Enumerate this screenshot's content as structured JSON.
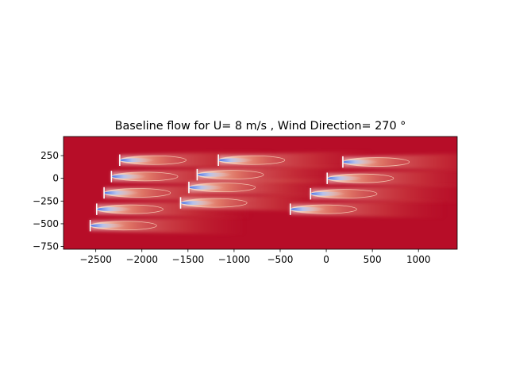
{
  "chart_data": {
    "type": "heatmap",
    "title": "Baseline flow for U= 8 m/s  ,  Wind Direction= 270  °",
    "xlabel": "",
    "ylabel": "",
    "xlim": [
      -2850,
      1420
    ],
    "ylim": [
      -780,
      460
    ],
    "x_ticks": [
      -2500,
      -2000,
      -1500,
      -1000,
      -500,
      0,
      500,
      1000
    ],
    "y_ticks": [
      -750,
      -500,
      -250,
      0,
      250
    ],
    "x_tick_labels": [
      "−2500",
      "−2000",
      "−1500",
      "−1000",
      "−500",
      "0",
      "500",
      "1000"
    ],
    "y_tick_labels": [
      "−750",
      "−500",
      "−250",
      "0",
      "250"
    ],
    "grid": false,
    "wind_direction_deg": 270,
    "wind_speed_ms": 8,
    "background_color": "#b70d28",
    "wake_core_color": "#4a6fe3",
    "turbine_color": "#ffffff",
    "turbines": [
      {
        "x": -2560,
        "y": -520
      },
      {
        "x": -2490,
        "y": -340
      },
      {
        "x": -2410,
        "y": -160
      },
      {
        "x": -2330,
        "y": 20
      },
      {
        "x": -2240,
        "y": 200
      },
      {
        "x": -1580,
        "y": -270
      },
      {
        "x": -1490,
        "y": -100
      },
      {
        "x": -1400,
        "y": 40
      },
      {
        "x": -1170,
        "y": 200
      },
      {
        "x": -390,
        "y": -340
      },
      {
        "x": -170,
        "y": -170
      },
      {
        "x": 10,
        "y": 0
      },
      {
        "x": 180,
        "y": 180
      }
    ]
  }
}
